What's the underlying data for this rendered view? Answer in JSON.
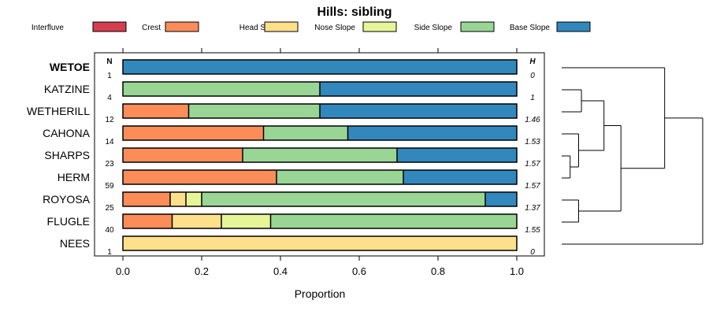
{
  "chart_data": {
    "type": "bar",
    "orientation": "horizontal",
    "stacked": true,
    "title": "Hills: sibling",
    "xlabel": "Proportion",
    "xlim": [
      0,
      1
    ],
    "xticks": [
      "0.0",
      "0.2",
      "0.4",
      "0.6",
      "0.8",
      "1.0"
    ],
    "n_header": "N",
    "h_header": "H",
    "highlight": "WETOE",
    "legend": [
      {
        "name": "Interfluve",
        "color": "#d53e4f"
      },
      {
        "name": "Crest",
        "color": "#fc8d59"
      },
      {
        "name": "Head Slope",
        "color": "#fee08b"
      },
      {
        "name": "Nose Slope",
        "color": "#e6f598"
      },
      {
        "name": "Side Slope",
        "color": "#99d594"
      },
      {
        "name": "Base Slope",
        "color": "#3288bd"
      }
    ],
    "categories": [
      "WETOE",
      "KATZINE",
      "WETHERILL",
      "CAHONA",
      "SHARPS",
      "HERM",
      "ROYOSA",
      "FLUGLE",
      "NEES"
    ],
    "n": [
      "1",
      "4",
      "12",
      "14",
      "23",
      "59",
      "25",
      "40",
      "1"
    ],
    "h": [
      "0",
      "1",
      "1.46",
      "1.53",
      "1.57",
      "1.57",
      "1.37",
      "1.55",
      "0"
    ],
    "series": [
      {
        "name": "Interfluve",
        "values": [
          0,
          0,
          0,
          0,
          0,
          0,
          0,
          0,
          0
        ]
      },
      {
        "name": "Crest",
        "values": [
          0,
          0,
          0.167,
          0.357,
          0.304,
          0.39,
          0.12,
          0.125,
          0
        ]
      },
      {
        "name": "Head Slope",
        "values": [
          0,
          0,
          0,
          0,
          0,
          0,
          0.04,
          0.125,
          1
        ]
      },
      {
        "name": "Nose Slope",
        "values": [
          0,
          0,
          0,
          0,
          0,
          0,
          0.04,
          0.125,
          0
        ]
      },
      {
        "name": "Side Slope",
        "values": [
          0,
          0.5,
          0.333,
          0.214,
          0.392,
          0.322,
          0.72,
          0.625,
          0
        ]
      },
      {
        "name": "Base Slope",
        "values": [
          1,
          0.5,
          0.5,
          0.429,
          0.304,
          0.288,
          0.08,
          0,
          0
        ]
      }
    ],
    "dendrogram": {
      "order": [
        "WETOE",
        "KATZINE",
        "WETHERILL",
        "CAHONA",
        "SHARPS",
        "HERM",
        "ROYOSA",
        "FLUGLE",
        "NEES"
      ],
      "merges": [
        {
          "a": "KATZINE",
          "b": "WETHERILL",
          "height": 0.14
        },
        {
          "a": "SHARPS",
          "b": "HERM",
          "height": 0.06
        },
        {
          "a": "CAHONA",
          "b": "c2",
          "height": 0.12
        },
        {
          "a": "c1",
          "b": "c3",
          "height": 0.3
        },
        {
          "a": "ROYOSA",
          "b": "FLUGLE",
          "height": 0.12
        },
        {
          "a": "c4",
          "b": "c5",
          "height": 0.42
        },
        {
          "a": "WETOE",
          "b": "c6",
          "height": 0.73
        },
        {
          "a": "c7",
          "b": "NEES",
          "height": 1.0
        }
      ]
    }
  }
}
